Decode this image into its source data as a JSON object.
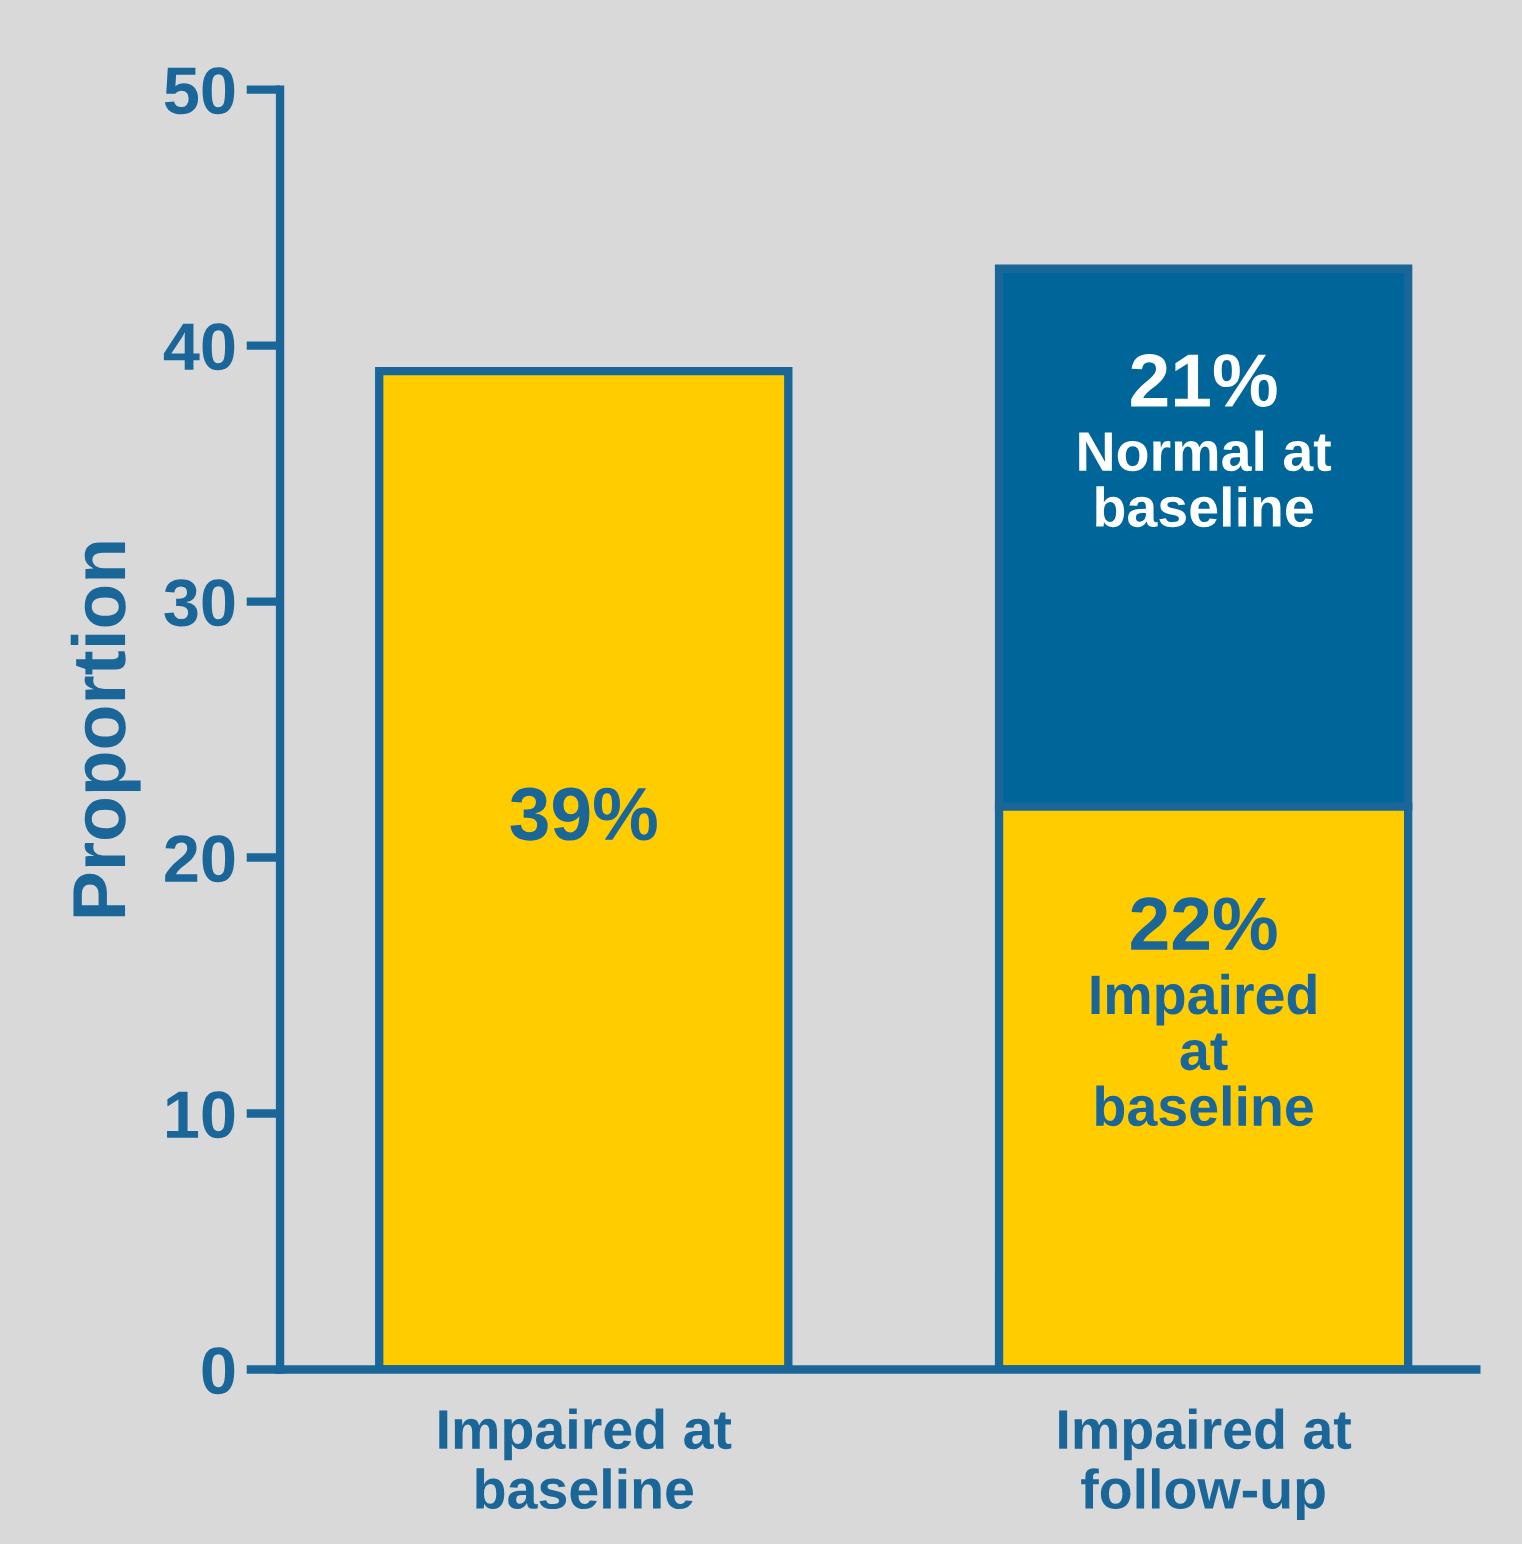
{
  "chart_data": {
    "type": "bar",
    "stacked": true,
    "ylabel": "Proportion",
    "categories": [
      "Impaired at\nbaseline",
      "Impaired at\nfollow-up"
    ],
    "series": [
      {
        "name": "Impaired\nat\nbaseline",
        "color": "#ffcc00",
        "values": [
          39,
          22
        ],
        "value_labels": [
          "39%",
          "22%"
        ]
      },
      {
        "name": "Normal at\nbaseline",
        "color": "#006699",
        "values": [
          null,
          21
        ],
        "value_labels": [
          null,
          "21%"
        ]
      }
    ],
    "ylim": [
      0,
      50
    ],
    "yticks": [
      0,
      10,
      20,
      30,
      40,
      50
    ],
    "grid": false,
    "legend": false
  }
}
